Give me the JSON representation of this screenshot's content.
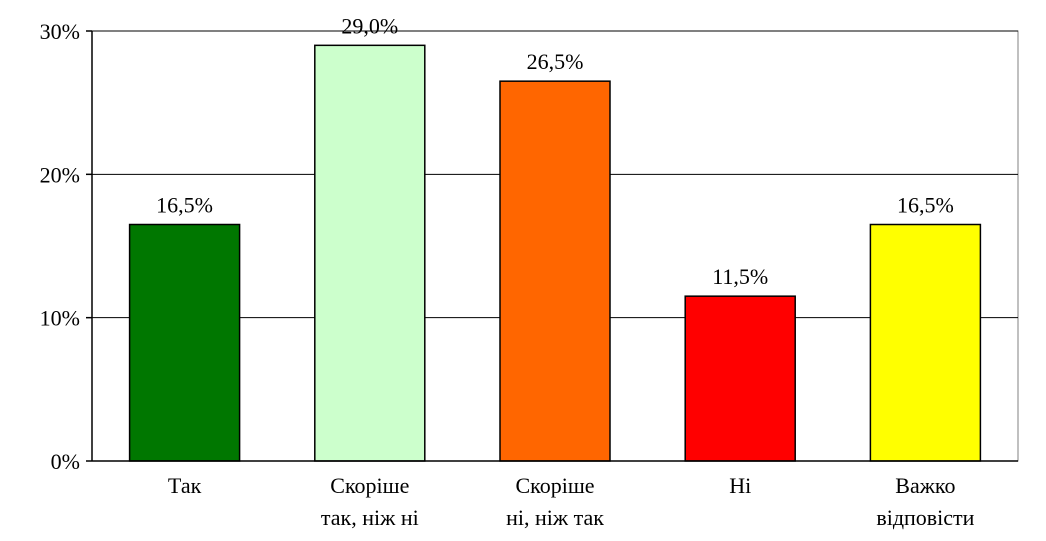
{
  "chart_data": {
    "type": "bar",
    "categories": [
      [
        "Так"
      ],
      [
        "Скоріше",
        "так, ніж ні"
      ],
      [
        "Скоріше",
        "ні, ніж так"
      ],
      [
        "Ні"
      ],
      [
        "Важко",
        "відповісти"
      ]
    ],
    "values": [
      16.5,
      29.0,
      26.5,
      11.5,
      16.5
    ],
    "data_labels": [
      "16,5%",
      "29,0%",
      "26,5%",
      "11,5%",
      "16,5%"
    ],
    "colors": [
      "#007700",
      "#ccffcc",
      "#ff6600",
      "#ff0000",
      "#ffff00"
    ],
    "ylim": [
      0,
      30
    ],
    "yticks": [
      0,
      10,
      20,
      30
    ],
    "ytick_labels": [
      "0%",
      "10%",
      "20%",
      "30%"
    ],
    "grid": true,
    "legend": "none",
    "title": "",
    "xlabel": "",
    "ylabel": ""
  }
}
